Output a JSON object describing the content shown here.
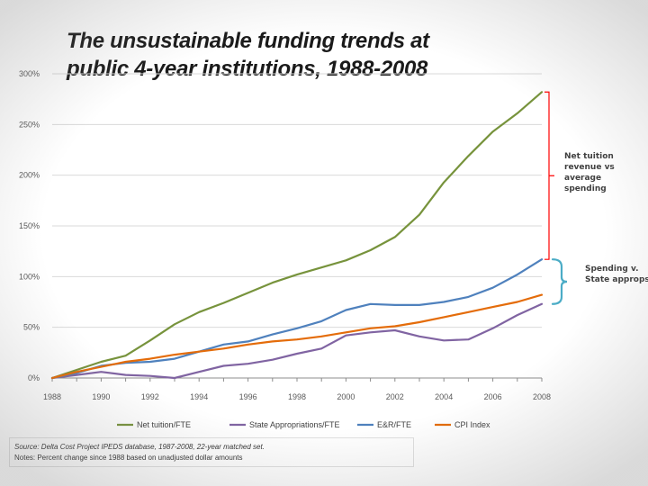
{
  "title_lines": [
    "The unsustainable funding trends at",
    "public 4-year institutions, 1988-2008"
  ],
  "chart_data": {
    "type": "line",
    "title": "The unsustainable funding trends at public 4-year institutions, 1988-2008",
    "x": [
      1988,
      1989,
      1990,
      1991,
      1992,
      1993,
      1994,
      1995,
      1996,
      1997,
      1998,
      1999,
      2000,
      2001,
      2002,
      2003,
      2004,
      2005,
      2006,
      2007,
      2008
    ],
    "x_ticks": [
      "1988",
      "1990",
      "1992",
      "1994",
      "1996",
      "1998",
      "2000",
      "2002",
      "2004",
      "2006",
      "2008"
    ],
    "y_ticks": [
      "0%",
      "50%",
      "100%",
      "150%",
      "200%",
      "250%",
      "300%"
    ],
    "ylim": [
      0,
      300
    ],
    "xlim": [
      1988,
      2008
    ],
    "series": [
      {
        "name": "Net tuition/FTE",
        "color": "#77933c",
        "values": [
          0,
          8,
          16,
          22,
          37,
          53,
          65,
          74,
          84,
          94,
          102,
          109,
          116,
          126,
          139,
          161,
          193,
          219,
          243,
          261,
          282
        ]
      },
      {
        "name": "State Appropriations/FTE",
        "color": "#8064a2",
        "values": [
          0,
          3,
          6,
          3,
          2,
          0,
          6,
          12,
          14,
          18,
          24,
          29,
          42,
          45,
          47,
          41,
          37,
          38,
          49,
          62,
          73
        ]
      },
      {
        "name": "E&R/FTE",
        "color": "#4f81bd",
        "values": [
          0,
          5,
          12,
          15,
          16,
          19,
          26,
          33,
          36,
          43,
          49,
          56,
          67,
          73,
          72,
          72,
          75,
          80,
          89,
          102,
          117
        ]
      },
      {
        "name": "CPI Index",
        "color": "#e46c0a",
        "values": [
          0,
          6,
          11,
          16,
          19,
          23,
          26,
          29,
          33,
          36,
          38,
          41,
          45,
          49,
          51,
          55,
          60,
          65,
          70,
          75,
          82
        ]
      }
    ],
    "legend_position": "bottom",
    "annotations": [
      {
        "text_lines": [
          "Net tuition",
          "revenue vs",
          "average",
          "spending"
        ],
        "color": "#ff0000"
      },
      {
        "text_lines": [
          "Spending v.",
          "State approps"
        ],
        "color": "#4bacc6"
      }
    ]
  },
  "source_lines": [
    "Source: Delta Cost Project IPEDS database, 1987-2008, 22-year matched set.",
    "Notes: Percent change since 1988 based on unadjusted dollar amounts"
  ],
  "colors": {
    "grid": "#d9d9d9",
    "axis": "#8c8c8c"
  }
}
